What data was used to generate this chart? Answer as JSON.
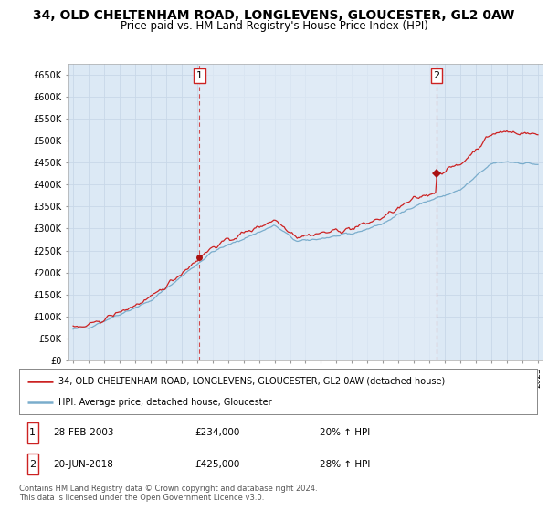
{
  "title": "34, OLD CHELTENHAM ROAD, LONGLEVENS, GLOUCESTER, GL2 0AW",
  "subtitle": "Price paid vs. HM Land Registry's House Price Index (HPI)",
  "title_fontsize": 10,
  "subtitle_fontsize": 8.5,
  "background_color": "#ffffff",
  "plot_bg_color": "#dce9f5",
  "plot_bg_color2": "#e8f0f8",
  "grid_color": "#c8d8e8",
  "ylim": [
    0,
    675000
  ],
  "yticks": [
    0,
    50000,
    100000,
    150000,
    200000,
    250000,
    300000,
    350000,
    400000,
    450000,
    500000,
    550000,
    600000,
    650000
  ],
  "sale1_date": "28-FEB-2003",
  "sale1_price": 234000,
  "sale1_pct": "20%",
  "sale2_date": "20-JUN-2018",
  "sale2_price": 425000,
  "sale2_pct": "28%",
  "legend_label_red": "34, OLD CHELTENHAM ROAD, LONGLEVENS, GLOUCESTER, GL2 0AW (detached house)",
  "legend_label_blue": "HPI: Average price, detached house, Gloucester",
  "footer": "Contains HM Land Registry data © Crown copyright and database right 2024.\nThis data is licensed under the Open Government Licence v3.0.",
  "sale1_x": 2003.15,
  "sale2_x": 2018.47,
  "red_color": "#cc2222",
  "blue_color": "#7aadcc",
  "marker_color": "#aa1111"
}
